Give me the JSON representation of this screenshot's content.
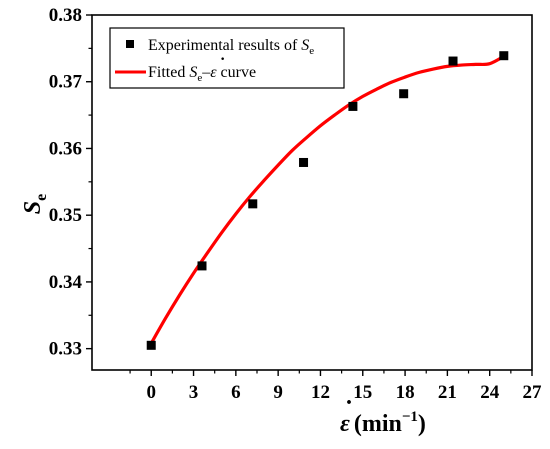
{
  "chart_data": {
    "type": "scatter",
    "title": "",
    "x_ticks": [
      "0",
      "3",
      "6",
      "9",
      "12",
      "15",
      "18",
      "21",
      "24",
      "27"
    ],
    "y_ticks": [
      "0.33",
      "0.34",
      "0.35",
      "0.36",
      "0.37",
      "0.38"
    ],
    "xlim": [
      -4.2,
      27
    ],
    "ylim": [
      0.3268,
      0.38
    ],
    "xlabel": {
      "symbol": "ε",
      "dot": "·",
      "unit_prefix": "(min",
      "unit_exponent": "−1",
      "unit_suffix": ")"
    },
    "ylabel": {
      "symbol": "S",
      "subscript": "e"
    },
    "series": [
      {
        "name": "Experimental results of Se",
        "kind": "scatter",
        "marker": "square",
        "color": "#000000",
        "x": [
          0,
          3.6,
          7.2,
          10.8,
          14.3,
          17.9,
          21.4,
          25.0
        ],
        "y": [
          0.3305,
          0.3424,
          0.3517,
          0.3579,
          0.3663,
          0.3682,
          0.3731,
          0.3739
        ]
      },
      {
        "name": "Fitted Se–ε̇ curve",
        "kind": "line",
        "color": "#ff0000",
        "x": [
          0,
          1,
          2,
          3,
          4,
          5,
          6,
          7,
          8,
          9,
          10,
          11,
          12,
          13,
          14,
          15,
          16,
          17,
          18,
          19,
          20,
          21,
          22,
          23,
          24,
          25
        ],
        "y": [
          0.3308,
          0.3345,
          0.338,
          0.3413,
          0.3444,
          0.3474,
          0.3502,
          0.3528,
          0.3552,
          0.3575,
          0.3597,
          0.3616,
          0.3634,
          0.365,
          0.3665,
          0.3678,
          0.3689,
          0.3699,
          0.3707,
          0.3714,
          0.3719,
          0.3723,
          0.3725,
          0.3726,
          0.3727,
          0.3738
        ]
      }
    ],
    "legend": {
      "position": "top-left",
      "entries": [
        {
          "prefix": "Experimental results of ",
          "sym": "S",
          "sub": "e",
          "rest": ""
        },
        {
          "prefix": "Fitted ",
          "sym": "S",
          "sub": "e",
          "dash": "–",
          "dotsym": "ε",
          "dot": "·",
          "rest": " curve"
        }
      ]
    },
    "grid": false
  }
}
